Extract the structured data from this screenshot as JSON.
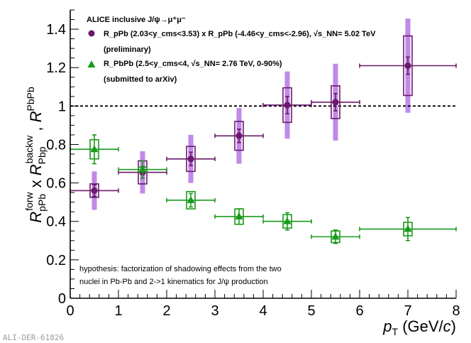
{
  "chart_data": {
    "type": "scatter",
    "title": "ALICE inclusive J/ψ→μ⁺μ⁻",
    "xlabel": "p_T (GeV/c)",
    "ylabel": "R_pPb^forw x R_Pbp^backw , R_PbPb",
    "xlim": [
      0,
      8
    ],
    "ylim": [
      0,
      1.5
    ],
    "x_ticks": [
      "0",
      "1",
      "2",
      "3",
      "4",
      "5",
      "6",
      "7",
      "8"
    ],
    "y_ticks": [
      "0",
      "0.2",
      "0.4",
      "0.6",
      "0.8",
      "1",
      "1.2",
      "1.4"
    ],
    "reference_line": 1,
    "series": [
      {
        "name": "R_pPb (2.03<y_cms<3.53) x R_pPb (-4.46<y_cms<-2.96), √s_NN = 5.02 TeV",
        "note": "(preliminary)",
        "marker": "circle",
        "color": "#6b1a6b",
        "syst_color": "#6b1a6b",
        "corr_color": "#c08ae8",
        "points": [
          {
            "x": 0.5,
            "xlo": 0,
            "xhi": 1,
            "y": 0.56,
            "stat": 0.03,
            "syst": 0.035,
            "corr": 0.1
          },
          {
            "x": 1.5,
            "xlo": 1,
            "xhi": 2,
            "y": 0.655,
            "stat": 0.03,
            "syst": 0.06,
            "corr": 0.11
          },
          {
            "x": 2.5,
            "xlo": 2,
            "xhi": 3,
            "y": 0.725,
            "stat": 0.035,
            "syst": 0.065,
            "corr": 0.125
          },
          {
            "x": 3.5,
            "xlo": 3,
            "xhi": 4,
            "y": 0.845,
            "stat": 0.035,
            "syst": 0.075,
            "corr": 0.145
          },
          {
            "x": 4.5,
            "xlo": 4,
            "xhi": 5,
            "y": 1.005,
            "stat": 0.045,
            "syst": 0.09,
            "corr": 0.175
          },
          {
            "x": 5.5,
            "xlo": 5,
            "xhi": 6,
            "y": 1.02,
            "stat": 0.045,
            "syst": 0.085,
            "corr": 0.2
          },
          {
            "x": 7.0,
            "xlo": 6,
            "xhi": 8,
            "y": 1.21,
            "stat": 0.045,
            "syst": 0.155,
            "corr": 0.245
          }
        ]
      },
      {
        "name": "R_PbPb (2.5<y_cms<4, √s_NN = 2.76 TeV, 0-90%)",
        "note": "(submitted to arXiv)",
        "marker": "triangle",
        "color": "#1a9a1a",
        "syst_color": "#1a9a1a",
        "points": [
          {
            "x": 0.5,
            "xlo": 0,
            "xhi": 1,
            "y": 0.775,
            "stat": 0.075,
            "syst": 0.05
          },
          {
            "x": 1.5,
            "xlo": 1,
            "xhi": 2,
            "y": 0.67,
            "stat": 0.045,
            "syst": 0.012
          },
          {
            "x": 2.5,
            "xlo": 2,
            "xhi": 3,
            "y": 0.51,
            "stat": 0.035,
            "syst": 0.045
          },
          {
            "x": 3.5,
            "xlo": 3,
            "xhi": 4,
            "y": 0.425,
            "stat": 0.04,
            "syst": 0.04
          },
          {
            "x": 4.5,
            "xlo": 4,
            "xhi": 5,
            "y": 0.4,
            "stat": 0.045,
            "syst": 0.035
          },
          {
            "x": 5.5,
            "xlo": 5,
            "xhi": 6,
            "y": 0.32,
            "stat": 0.035,
            "syst": 0.03
          },
          {
            "x": 7.0,
            "xlo": 6,
            "xhi": 8,
            "y": 0.36,
            "stat": 0.06,
            "syst": 0.035
          }
        ]
      }
    ],
    "legend": {
      "header": "ALICE inclusive J/ψ→μ⁺μ⁻",
      "entry1_line": "R_pPb (2.03<y_cms<3.53) x R_pPb (-4.46<y_cms<-2.96), √s_NN= 5.02 TeV",
      "entry1_note": "(preliminary)",
      "entry2_line": "R_PbPb (2.5<y_cms<4, √s_NN= 2.76 TeV, 0-90%)",
      "entry2_note": "(submitted to arXiv)"
    },
    "annotation": [
      "hypothesis: factorization of shadowing effects from the two",
      "nuclei in Pb-Pb and 2->1 kinematics for J/ψ production"
    ],
    "watermark": "ALI-DER-61826"
  }
}
